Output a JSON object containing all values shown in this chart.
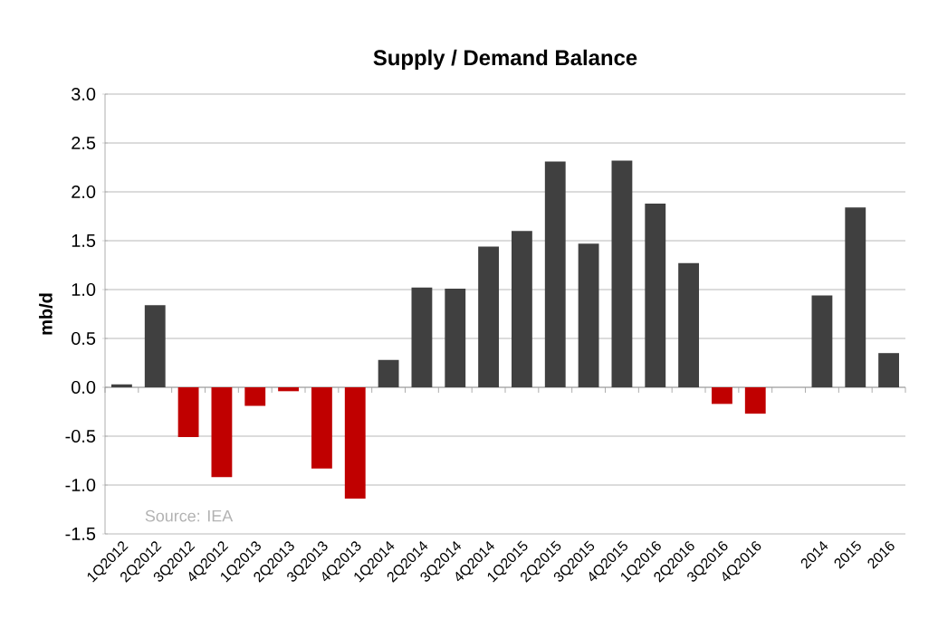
{
  "chart_data": {
    "type": "bar",
    "title": "Supply / Demand Balance",
    "ylabel": "mb/d",
    "categories": [
      "1Q2012",
      "2Q2012",
      "3Q2012",
      "4Q2012",
      "1Q2013",
      "2Q2013",
      "3Q2013",
      "4Q2013",
      "1Q2014",
      "2Q2014",
      "3Q2014",
      "4Q2014",
      "1Q2015",
      "2Q2015",
      "3Q2015",
      "4Q2015",
      "1Q2016",
      "2Q2016",
      "3Q2016",
      "4Q2016",
      null,
      "2014",
      "2015",
      "2016"
    ],
    "values": [
      0.03,
      0.84,
      -0.51,
      -0.92,
      -0.19,
      -0.04,
      -0.83,
      -1.14,
      0.28,
      1.02,
      1.01,
      1.44,
      1.6,
      2.31,
      1.47,
      2.32,
      1.88,
      1.27,
      -0.17,
      -0.27,
      null,
      0.94,
      1.84,
      0.35
    ],
    "colors": [
      "#404040",
      "#404040",
      "#c00000",
      "#c00000",
      "#c00000",
      "#c00000",
      "#c00000",
      "#c00000",
      "#404040",
      "#404040",
      "#404040",
      "#404040",
      "#404040",
      "#404040",
      "#404040",
      "#404040",
      "#404040",
      "#404040",
      "#c00000",
      "#c00000",
      "#404040",
      "#404040",
      "#404040",
      "#404040"
    ],
    "ylim": [
      -1.5,
      3.0
    ],
    "yticks": [
      {
        "value": -1.5,
        "label": "-1.5"
      },
      {
        "value": -1.0,
        "label": "-1.0"
      },
      {
        "value": -0.5,
        "label": "-0.5"
      },
      {
        "value": 0,
        "label": "0.0"
      },
      {
        "value": 0.5,
        "label": "0.5"
      },
      {
        "value": 1.0,
        "label": "1.0"
      },
      {
        "value": 1.5,
        "label": "1.5"
      },
      {
        "value": 2.0,
        "label": "2.0"
      },
      {
        "value": 2.5,
        "label": "2.5"
      },
      {
        "value": 3.0,
        "label": "3.0"
      }
    ],
    "grid": "y",
    "annotations": [
      "Source: IEA"
    ]
  }
}
